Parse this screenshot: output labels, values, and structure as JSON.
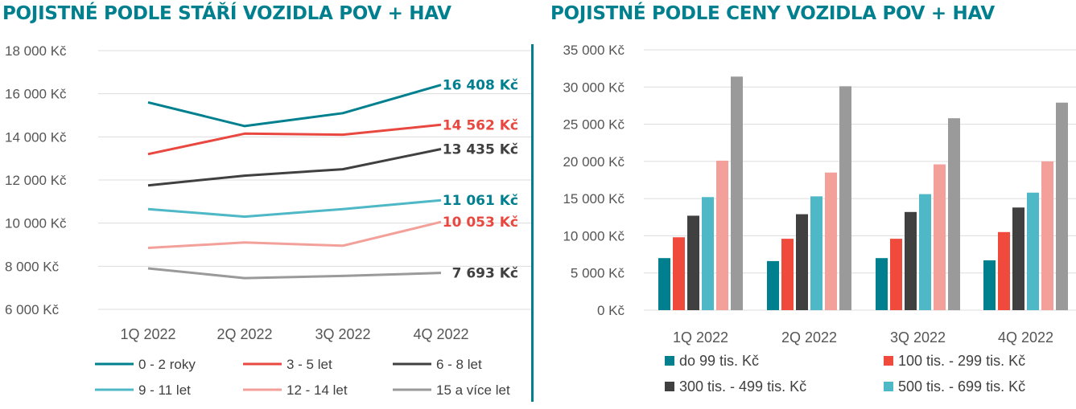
{
  "chart_data": [
    {
      "type": "line",
      "title": "POJISTNÉ PODLE STÁŘÍ VOZIDLA POV + HAV",
      "categories": [
        "1Q 2022",
        "2Q 2022",
        "3Q 2022",
        "4Q 2022"
      ],
      "y_ticks": [
        "18 000 Kč",
        "16 000 Kč",
        "14 000 Kč",
        "12 000 Kč",
        "10 000 Kč",
        "8 000 Kč",
        "6 000 Kč"
      ],
      "ylim": [
        6000,
        18000
      ],
      "grid": true,
      "legend_position": "bottom",
      "series": [
        {
          "name": "0 - 2 roky",
          "values": [
            15600,
            14500,
            15100,
            16408
          ],
          "end_label": "16 408 Kč",
          "color": "#00808f",
          "label_color": "#00808f"
        },
        {
          "name": "3 - 5 let",
          "values": [
            13200,
            14150,
            14100,
            14562
          ],
          "end_label": "14 562 Kč",
          "color": "#e8483f",
          "label_color": "#e8483f"
        },
        {
          "name": "6 - 8 let",
          "values": [
            11750,
            12200,
            12500,
            13435
          ],
          "end_label": "13 435 Kč",
          "color": "#404040",
          "label_color": "#404040"
        },
        {
          "name": "9 - 11 let",
          "values": [
            10650,
            10300,
            10650,
            11061
          ],
          "end_label": "11 061 Kč",
          "color": "#4fb8c6",
          "label_color": "#00808f"
        },
        {
          "name": "12 - 14 let",
          "values": [
            8850,
            9100,
            8950,
            10053
          ],
          "end_label": "10 053 Kč",
          "color": "#f4a09a",
          "label_color": "#e8483f"
        },
        {
          "name": "15 a více let",
          "values": [
            7900,
            7450,
            7550,
            7693
          ],
          "end_label": "7 693 Kč",
          "color": "#9a9a9a",
          "label_color": "#404040"
        }
      ]
    },
    {
      "type": "bar",
      "title": "POJISTNÉ PODLE CENY VOZIDLA POV + HAV",
      "categories": [
        "1Q 2022",
        "2Q 2022",
        "3Q 2022",
        "4Q 2022"
      ],
      "y_ticks": [
        "35 000 Kč",
        "30 000 Kč",
        "25 000 Kč",
        "20 000 Kč",
        "15 000 Kč",
        "10 000 Kč",
        "5 000 Kč",
        "0 Kč"
      ],
      "ylim": [
        0,
        35000
      ],
      "grid": true,
      "legend_position": "bottom",
      "series": [
        {
          "name": "do 99 tis. Kč",
          "values": [
            7000,
            6600,
            7000,
            6700
          ],
          "color": "#00808f"
        },
        {
          "name": "100 tis. - 299 tis. Kč",
          "values": [
            9800,
            9600,
            9600,
            10500
          ],
          "color": "#f04a3c"
        },
        {
          "name": "300 tis. - 499 tis. Kč",
          "values": [
            12700,
            12900,
            13200,
            13800
          ],
          "color": "#404040"
        },
        {
          "name": "500 tis. - 699 tis. Kč",
          "values": [
            15200,
            15300,
            15600,
            15800
          ],
          "color": "#4fb8c6"
        },
        {
          "name": "",
          "values": [
            20100,
            18500,
            19600,
            20000
          ],
          "color": "#f4a09a"
        },
        {
          "name": "",
          "values": [
            31400,
            30100,
            25800,
            27900
          ],
          "color": "#9a9a9a"
        }
      ]
    }
  ]
}
